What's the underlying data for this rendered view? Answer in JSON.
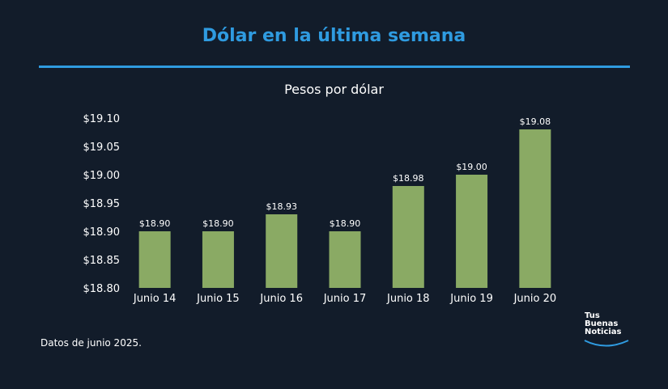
{
  "header": {
    "title": "Dólar en la última semana",
    "subtitle": "Pesos por dólar"
  },
  "footnote": "Datos de junio 2025.",
  "logo": {
    "line1": "Tus",
    "line2": "Buenas",
    "line3": "Noticias"
  },
  "colors": {
    "background": "#121c2a",
    "accent": "#2f9be0",
    "bar": "#8aaa64"
  },
  "chart_data": {
    "type": "bar",
    "title": "Pesos por dólar",
    "categories": [
      "Junio 14",
      "Junio 15",
      "Junio 16",
      "Junio 17",
      "Junio 18",
      "Junio 19",
      "Junio 20"
    ],
    "values": [
      18.9,
      18.9,
      18.93,
      18.9,
      18.98,
      19.0,
      19.08
    ],
    "value_labels": [
      "$18.90",
      "$18.90",
      "$18.93",
      "$18.90",
      "$18.98",
      "$19.00",
      "$19.08"
    ],
    "y_ticks": [
      18.8,
      18.85,
      18.9,
      18.95,
      19.0,
      19.05,
      19.1
    ],
    "y_tick_labels": [
      "$18.80",
      "$18.85",
      "$18.90",
      "$18.95",
      "$19.00",
      "$19.05",
      "$19.10"
    ],
    "ylim": [
      18.8,
      19.1
    ],
    "xlabel": "",
    "ylabel": "",
    "grid": false,
    "legend": "none"
  }
}
